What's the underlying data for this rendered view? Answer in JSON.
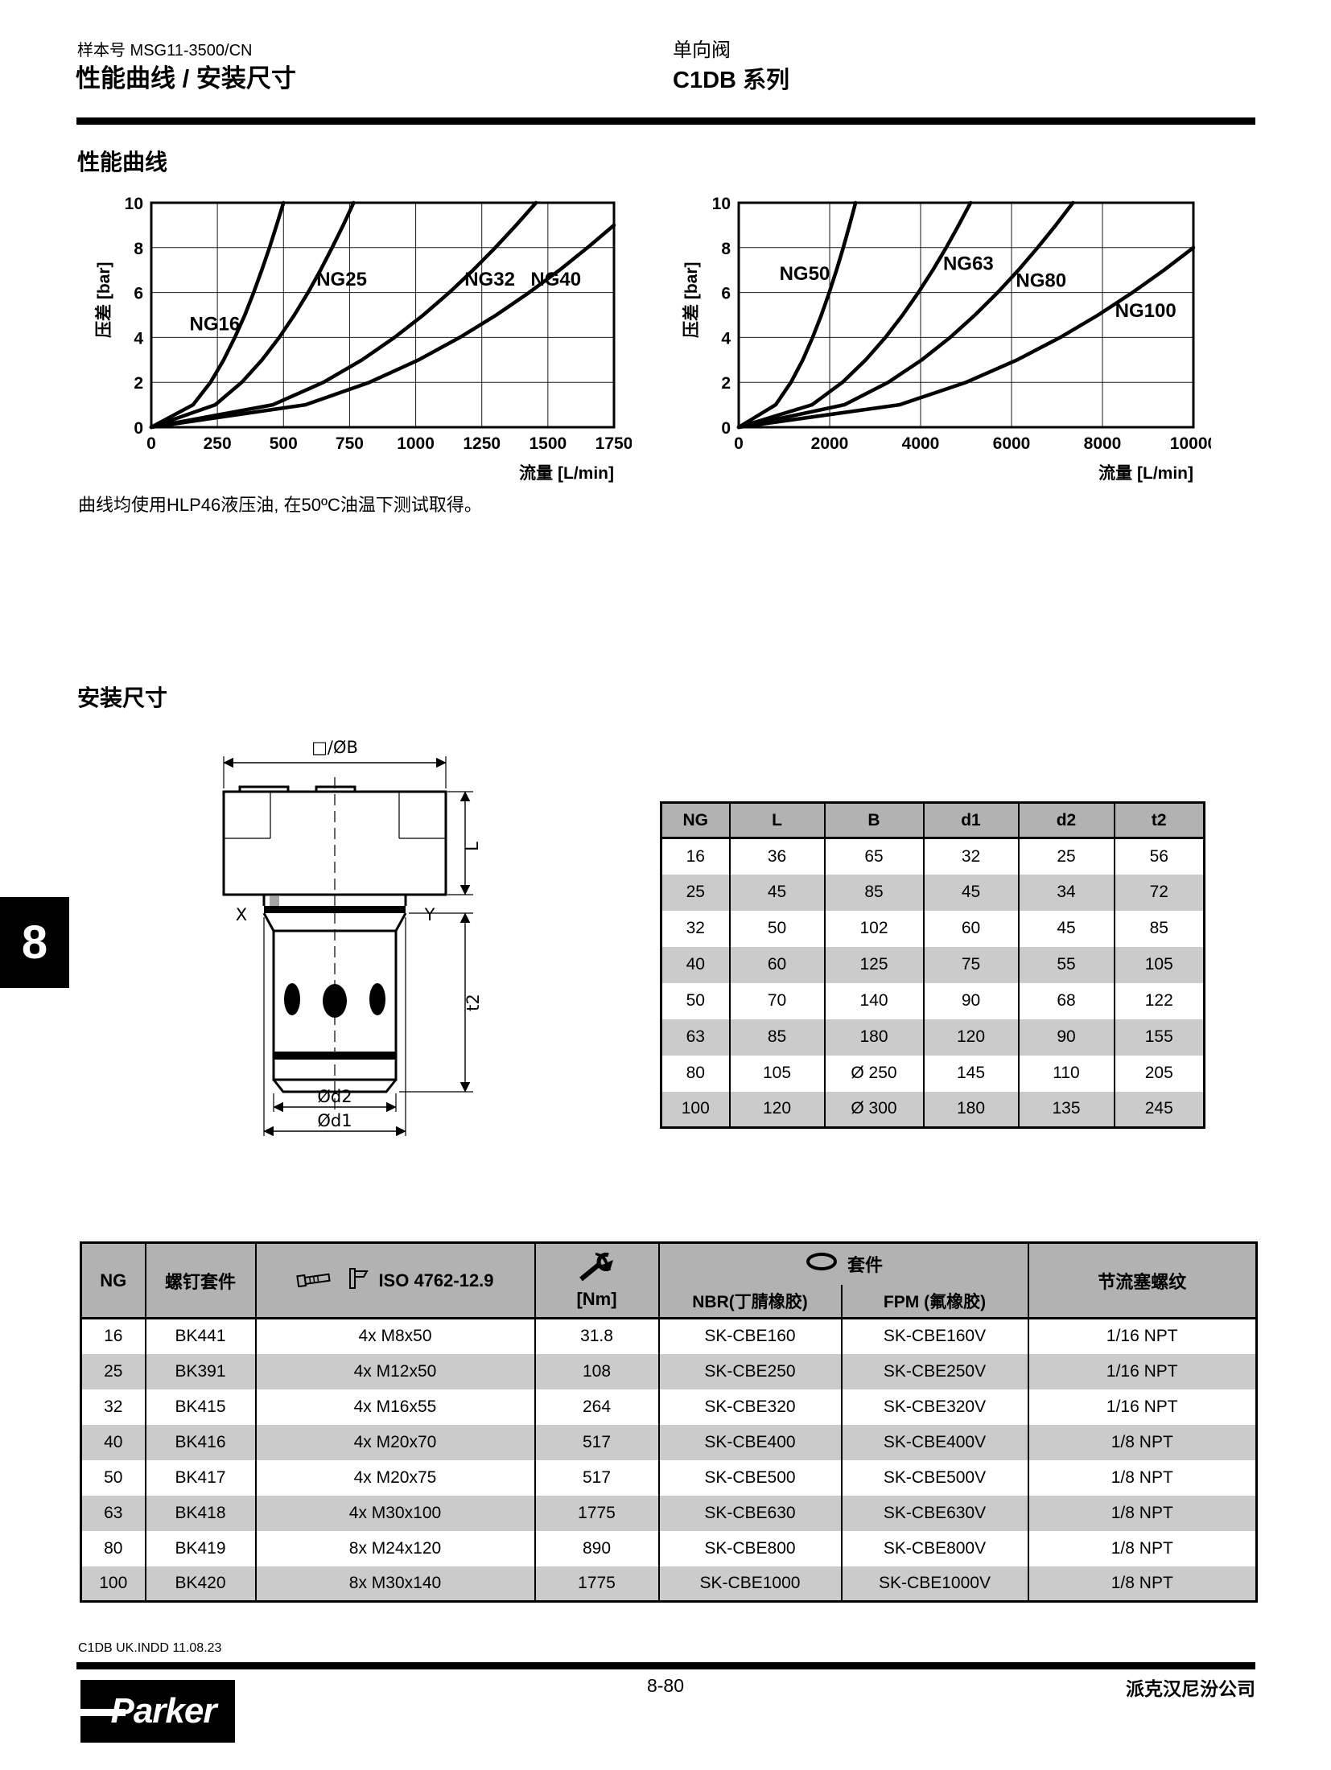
{
  "colors": {
    "table_header_bg": "#b2b2b2",
    "table_alt_row_bg": "#cbcbcb",
    "tab_bg": "#000000",
    "text": "#000000"
  },
  "header": {
    "doc_number": "样本号 MSG11-3500/CN",
    "page_title": "性能曲线 / 安装尺寸",
    "product": "单向阀",
    "series": "C1DB 系列"
  },
  "section_performance": {
    "title": "性能曲线"
  },
  "note": "曲线均使用HLP46液压油, 在50ºC油温下测试取得。",
  "section_dimensions": {
    "title": "安装尺寸"
  },
  "chart_data": [
    {
      "type": "line",
      "title": "",
      "xlabel": "流量 [L/min]",
      "ylabel": "压差 [bar]",
      "xlim": [
        0,
        1750
      ],
      "ylim": [
        0,
        10
      ],
      "xticks": [
        0,
        250,
        500,
        750,
        1000,
        1250,
        1500,
        1750
      ],
      "yticks": [
        0,
        2,
        4,
        6,
        8,
        10
      ],
      "grid": true,
      "legend_position": "inline-labels",
      "series": [
        {
          "name": "NG16",
          "label_x": 240,
          "label_y": 4.6,
          "points": [
            [
              0,
              0
            ],
            [
              158,
              1
            ],
            [
              224,
              2
            ],
            [
              274,
              3
            ],
            [
              316,
              4
            ],
            [
              354,
              5
            ],
            [
              387,
              6
            ],
            [
              418,
              7
            ],
            [
              447,
              8
            ],
            [
              474,
              9
            ],
            [
              500,
              10
            ]
          ]
        },
        {
          "name": "NG25",
          "label_x": 720,
          "label_y": 6.6,
          "points": [
            [
              0,
              0
            ],
            [
              242,
              1
            ],
            [
              342,
              2
            ],
            [
              419,
              3
            ],
            [
              484,
              4
            ],
            [
              541,
              5
            ],
            [
              593,
              6
            ],
            [
              640,
              7
            ],
            [
              684,
              8
            ],
            [
              726,
              9
            ],
            [
              765,
              10
            ]
          ]
        },
        {
          "name": "NG32",
          "label_x": 1280,
          "label_y": 6.6,
          "points": [
            [
              0,
              0
            ],
            [
              460,
              1
            ],
            [
              651,
              2
            ],
            [
              797,
              3
            ],
            [
              920,
              4
            ],
            [
              1029,
              5
            ],
            [
              1127,
              6
            ],
            [
              1217,
              7
            ],
            [
              1301,
              8
            ],
            [
              1380,
              9
            ],
            [
              1455,
              10
            ]
          ]
        },
        {
          "name": "NG40",
          "label_x": 1530,
          "label_y": 6.6,
          "points": [
            [
              0,
              0
            ],
            [
              583,
              1
            ],
            [
              825,
              2
            ],
            [
              1011,
              3
            ],
            [
              1167,
              4
            ],
            [
              1305,
              5
            ],
            [
              1429,
              6
            ],
            [
              1544,
              7
            ],
            [
              1650,
              8
            ],
            [
              1750,
              9
            ]
          ]
        }
      ]
    },
    {
      "type": "line",
      "title": "",
      "xlabel": "流量 [L/min]",
      "ylabel": "压差 [bar]",
      "xlim": [
        0,
        10000
      ],
      "ylim": [
        0,
        10
      ],
      "xticks": [
        0,
        2000,
        4000,
        6000,
        8000,
        10000
      ],
      "yticks": [
        0,
        2,
        4,
        6,
        8,
        10
      ],
      "grid": true,
      "legend_position": "inline-labels",
      "series": [
        {
          "name": "NG50",
          "label_x": 1450,
          "label_y": 6.85,
          "points": [
            [
              0,
              0
            ],
            [
              813,
              1
            ],
            [
              1149,
              2
            ],
            [
              1408,
              3
            ],
            [
              1625,
              4
            ],
            [
              1817,
              5
            ],
            [
              1991,
              6
            ],
            [
              2150,
              7
            ],
            [
              2299,
              8
            ],
            [
              2438,
              9
            ],
            [
              2570,
              10
            ]
          ]
        },
        {
          "name": "NG63",
          "label_x": 5050,
          "label_y": 7.3,
          "points": [
            [
              0,
              0
            ],
            [
              1613,
              1
            ],
            [
              2281,
              2
            ],
            [
              2793,
              3
            ],
            [
              3226,
              4
            ],
            [
              3606,
              5
            ],
            [
              3951,
              6
            ],
            [
              4269,
              7
            ],
            [
              4562,
              8
            ],
            [
              4838,
              9
            ],
            [
              5100,
              10
            ]
          ]
        },
        {
          "name": "NG80",
          "label_x": 6650,
          "label_y": 6.55,
          "points": [
            [
              0,
              0
            ],
            [
              2324,
              1
            ],
            [
              3287,
              2
            ],
            [
              4026,
              3
            ],
            [
              4649,
              4
            ],
            [
              5197,
              5
            ],
            [
              5694,
              6
            ],
            [
              6153,
              7
            ],
            [
              6574,
              8
            ],
            [
              6973,
              9
            ],
            [
              7350,
              10
            ]
          ]
        },
        {
          "name": "NG100",
          "label_x": 8950,
          "label_y": 5.2,
          "points": [
            [
              0,
              0
            ],
            [
              3536,
              1
            ],
            [
              5000,
              2
            ],
            [
              6124,
              3
            ],
            [
              7071,
              4
            ],
            [
              7906,
              5
            ],
            [
              8660,
              6
            ],
            [
              9354,
              7
            ],
            [
              10000,
              8
            ]
          ]
        }
      ]
    }
  ],
  "drawing": {
    "dim_b": "□/ØB",
    "dim_l": "L",
    "dim_t2": "t2",
    "dim_d2": "Ød2",
    "dim_d1": "Ød1",
    "port_x": "X",
    "port_y": "Y"
  },
  "dim_table": {
    "headers": [
      "NG",
      "L",
      "B",
      "d1",
      "d2",
      "t2"
    ],
    "rows": [
      [
        "16",
        "36",
        "65",
        "32",
        "25",
        "56"
      ],
      [
        "25",
        "45",
        "85",
        "45",
        "34",
        "72"
      ],
      [
        "32",
        "50",
        "102",
        "60",
        "45",
        "85"
      ],
      [
        "40",
        "60",
        "125",
        "75",
        "55",
        "105"
      ],
      [
        "50",
        "70",
        "140",
        "90",
        "68",
        "122"
      ],
      [
        "63",
        "85",
        "180",
        "120",
        "90",
        "155"
      ],
      [
        "80",
        "105",
        "Ø 250",
        "145",
        "110",
        "205"
      ],
      [
        "100",
        "120",
        "Ø 300",
        "180",
        "135",
        "245"
      ]
    ]
  },
  "bolt_table": {
    "headers": {
      "ng": "NG",
      "kit": "螺钉套件",
      "iso": "ISO 4762-12.9",
      "nm": "[Nm]",
      "seal_kit": "套件",
      "nbr": "NBR(丁腈橡胶)",
      "fpm": "FPM (氟橡胶)",
      "throttle": "节流塞螺纹"
    },
    "icons": [
      "bolt-icon",
      "caliper-icon",
      "torque-wrench-icon",
      "o-ring-icon"
    ],
    "rows": [
      [
        "16",
        "BK441",
        "4x M8x50",
        "31.8",
        "SK-CBE160",
        "SK-CBE160V",
        "1/16 NPT"
      ],
      [
        "25",
        "BK391",
        "4x M12x50",
        "108",
        "SK-CBE250",
        "SK-CBE250V",
        "1/16 NPT"
      ],
      [
        "32",
        "BK415",
        "4x M16x55",
        "264",
        "SK-CBE320",
        "SK-CBE320V",
        "1/16 NPT"
      ],
      [
        "40",
        "BK416",
        "4x M20x70",
        "517",
        "SK-CBE400",
        "SK-CBE400V",
        "1/8 NPT"
      ],
      [
        "50",
        "BK417",
        "4x M20x75",
        "517",
        "SK-CBE500",
        "SK-CBE500V",
        "1/8 NPT"
      ],
      [
        "63",
        "BK418",
        "4x M30x100",
        "1775",
        "SK-CBE630",
        "SK-CBE630V",
        "1/8 NPT"
      ],
      [
        "80",
        "BK419",
        "8x M24x120",
        "890",
        "SK-CBE800",
        "SK-CBE800V",
        "1/8 NPT"
      ],
      [
        "100",
        "BK420",
        "8x M30x140",
        "1775",
        "SK-CBE1000",
        "SK-CBE1000V",
        "1/8 NPT"
      ]
    ]
  },
  "side_tab": {
    "number": "8"
  },
  "footer": {
    "file_info": "C1DB UK.INDD  11.08.23",
    "page_number": "8-80",
    "company": "派克汉尼汾公司",
    "logo_text": "Parker"
  }
}
